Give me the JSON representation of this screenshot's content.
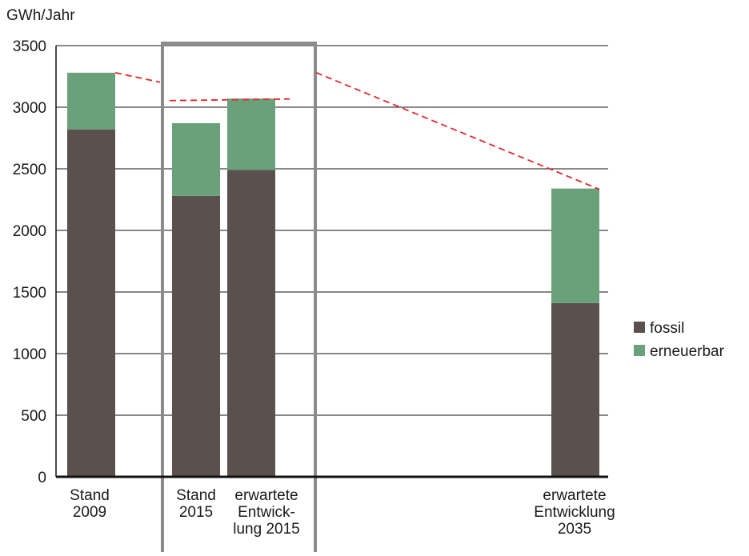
{
  "chart_data": {
    "type": "bar",
    "stacked": true,
    "ylabel": "GWh/Jahr",
    "ylim": [
      0,
      3500
    ],
    "yticks": [
      0,
      500,
      1000,
      1500,
      2000,
      2500,
      3000,
      3500
    ],
    "grid": true,
    "legend_position": "right",
    "categories": [
      {
        "lines": [
          "Stand",
          "2009"
        ],
        "year": 2009
      },
      {
        "lines": [
          "Stand",
          "2015"
        ],
        "year": 2015
      },
      {
        "lines": [
          "erwartete",
          "Entwick-",
          "lung 2015"
        ],
        "year": 2015
      },
      {
        "lines": [
          "erwartete",
          "Entwicklung",
          "2035"
        ],
        "year": 2035
      }
    ],
    "series": [
      {
        "name": "fossil",
        "color": "#5a504c",
        "values": [
          2820,
          2280,
          2490,
          1410
        ]
      },
      {
        "name": "erneuerbar",
        "color": "#6aa07a",
        "values": [
          460,
          590,
          580,
          930
        ]
      }
    ],
    "trend_lines": {
      "color": "#e0272b",
      "style": "dashed",
      "segments": [
        {
          "points": [
            [
              2009,
              3280
            ],
            [
              2015,
              3060
            ]
          ]
        },
        {
          "points": [
            [
              2015,
              3060
            ],
            [
              2035,
              2340
            ]
          ]
        }
      ]
    },
    "highlight_box": {
      "color": "#8c8c8c",
      "encloses": [
        "Stand 2015",
        "erwartete Entwicklung 2015"
      ]
    }
  }
}
